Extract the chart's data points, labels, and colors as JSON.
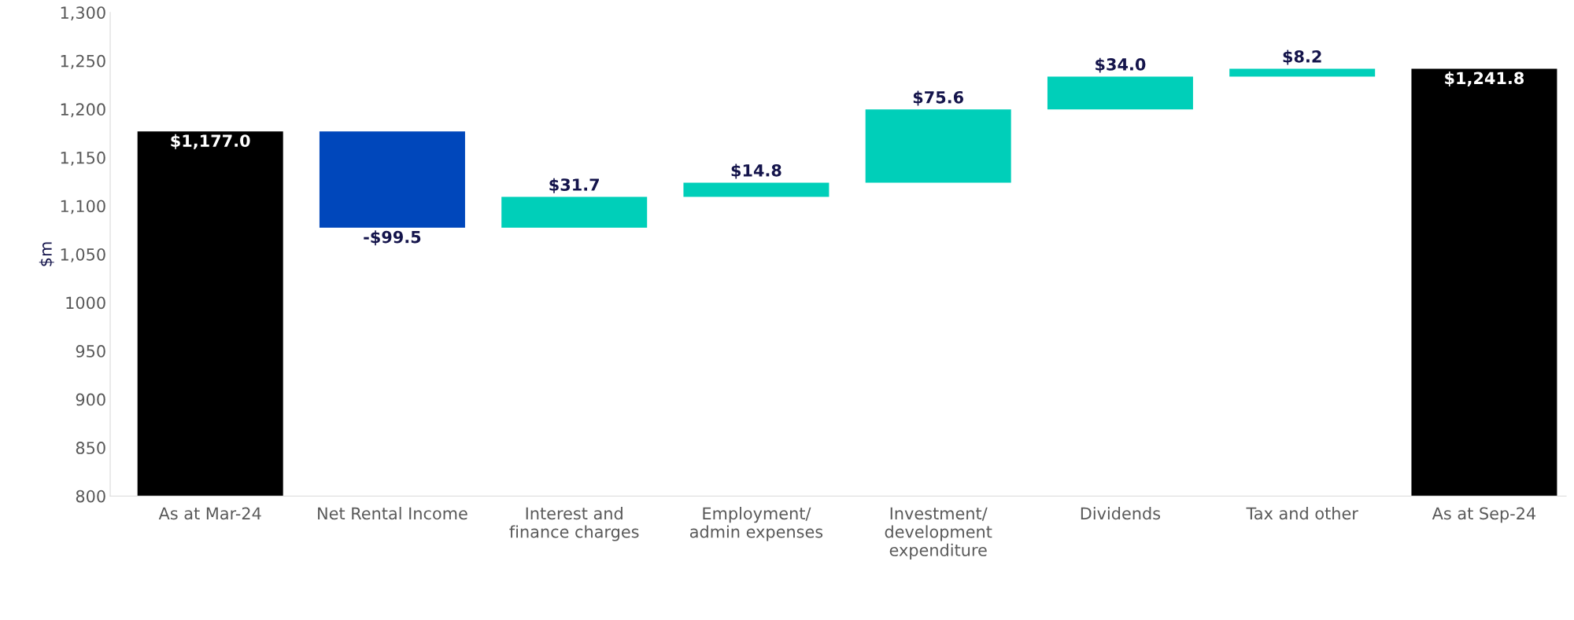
{
  "chart_data": {
    "type": "bar",
    "ylabel": "$m",
    "categories": [
      "As at Mar-24",
      "Net Rental Income",
      "Interest and\nfinance charges",
      "Employment/\nadmin expenses",
      "Investment/\ndevelopment\nexpenditure",
      "Dividends",
      "Tax and other",
      "As at Sep-24"
    ],
    "base": [
      800,
      1177.0,
      1077.5,
      1109.2,
      1124.0,
      1199.6,
      1233.6,
      800
    ],
    "values": [
      377.0,
      -99.5,
      31.7,
      14.8,
      75.6,
      34.0,
      8.2,
      441.8
    ],
    "value_labels": [
      "$1,177.0",
      "-$99.5",
      "$31.7",
      "$14.8",
      "$75.6",
      "$34.0",
      "$8.2",
      "$1,241.8"
    ],
    "colors": [
      "#000000",
      "#0047bb",
      "#00cfb9",
      "#00cfb9",
      "#00cfb9",
      "#00cfb9",
      "#00cfb9",
      "#000000"
    ],
    "ylim": [
      800,
      1300
    ],
    "yticks": [
      800,
      850,
      900,
      950,
      1000,
      {
        "value": 1050,
        "label": "1,050"
      },
      {
        "value": 1100,
        "label": "1,100"
      },
      {
        "value": 1150,
        "label": "1,150"
      },
      {
        "value": 1200,
        "label": "1,200"
      },
      {
        "value": 1250,
        "label": "1,250"
      },
      {
        "value": 1300,
        "label": "1,300"
      }
    ],
    "grid": false,
    "legend": false
  }
}
